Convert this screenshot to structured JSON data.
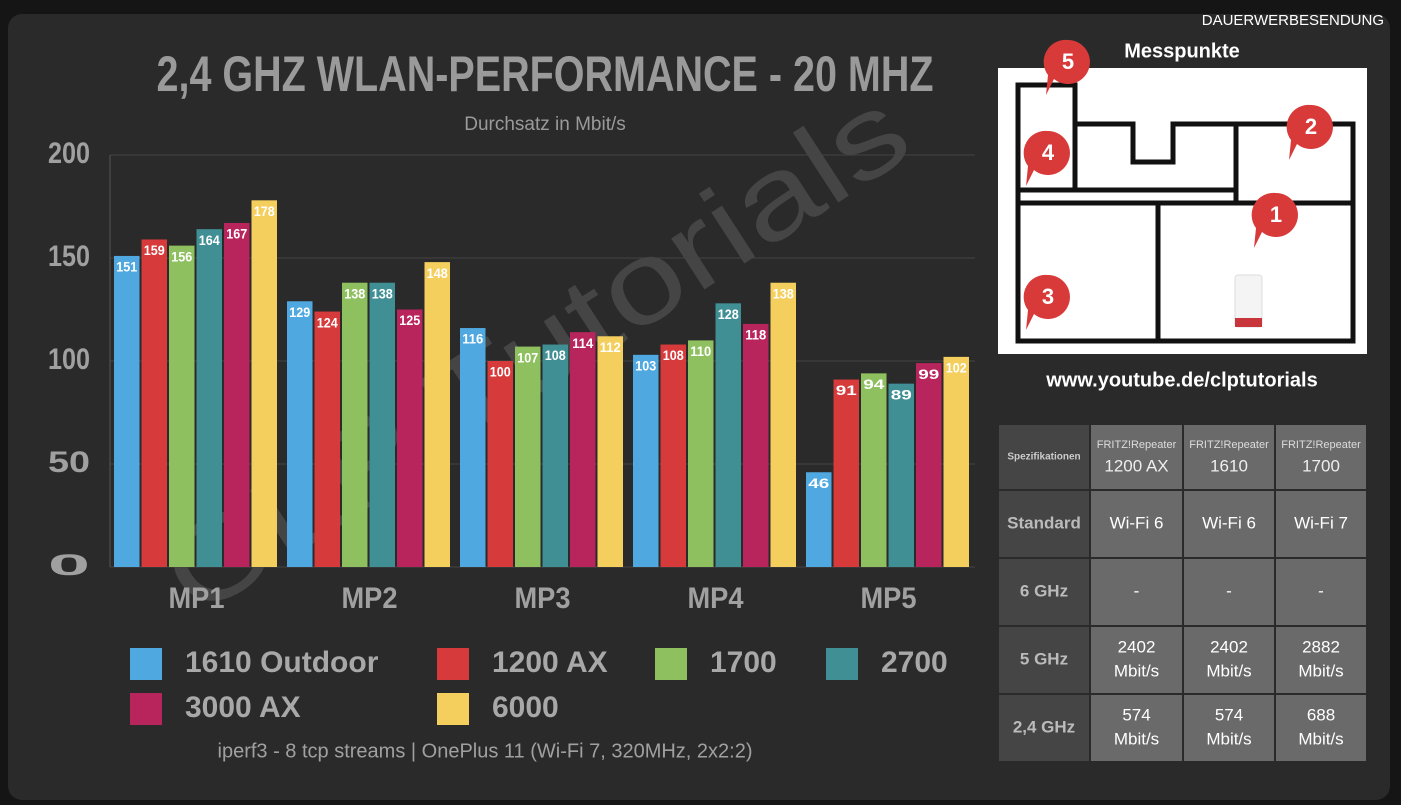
{
  "banner": "DAUERWERBESENDUNG",
  "watermark": "CLP Tutorials",
  "chart_data": {
    "type": "bar",
    "title": "2,4 GHZ WLAN-PERFORMANCE - 20 MHZ",
    "subtitle": "Durchsatz in Mbit/s",
    "footnote": "iperf3 - 8 tcp streams | OnePlus 11 (Wi-Fi 7, 320MHz, 2x2:2)",
    "categories": [
      "MP1",
      "MP2",
      "MP3",
      "MP4",
      "MP5"
    ],
    "series": [
      {
        "name": "1610 Outdoor",
        "color": "#4fa8e0",
        "values": [
          151,
          129,
          116,
          103,
          46
        ]
      },
      {
        "name": "1200 AX",
        "color": "#d63a3a",
        "values": [
          159,
          124,
          100,
          108,
          91
        ]
      },
      {
        "name": "1700",
        "color": "#8fc060",
        "values": [
          156,
          138,
          107,
          110,
          94
        ]
      },
      {
        "name": "2700",
        "color": "#3f8f95",
        "values": [
          164,
          138,
          108,
          128,
          89
        ]
      },
      {
        "name": "3000 AX",
        "color": "#b8245c",
        "values": [
          167,
          125,
          114,
          118,
          99
        ]
      },
      {
        "name": "6000",
        "color": "#f5cf5e",
        "values": [
          178,
          148,
          112,
          138,
          102
        ]
      }
    ],
    "ylim": [
      0,
      200
    ],
    "yticks": [
      0,
      50,
      100,
      150,
      200
    ],
    "grid": true
  },
  "floorplan": {
    "title": "Messpunkte",
    "markers": [
      {
        "label": "1"
      },
      {
        "label": "2"
      },
      {
        "label": "3"
      },
      {
        "label": "4"
      },
      {
        "label": "5"
      }
    ],
    "url": "www.youtube.de/clptutorials"
  },
  "table": {
    "header": [
      "Spezifikationen",
      {
        "brand": "FRITZ!Repeater",
        "model": "1200 AX"
      },
      {
        "brand": "FRITZ!Repeater",
        "model": "1610"
      },
      {
        "brand": "FRITZ!Repeater",
        "model": "1700"
      }
    ],
    "rows": [
      [
        "Standard",
        "Wi-Fi 6",
        "Wi-Fi 6",
        "Wi-Fi 7"
      ],
      [
        "6 GHz",
        "-",
        "-",
        "-"
      ],
      [
        "5 GHz",
        [
          "2402",
          "Mbit/s"
        ],
        [
          "2402",
          "Mbit/s"
        ],
        [
          "2882",
          "Mbit/s"
        ]
      ],
      [
        "2,4 GHz",
        [
          "574",
          "Mbit/s"
        ],
        [
          "574",
          "Mbit/s"
        ],
        [
          "688",
          "Mbit/s"
        ]
      ]
    ]
  }
}
